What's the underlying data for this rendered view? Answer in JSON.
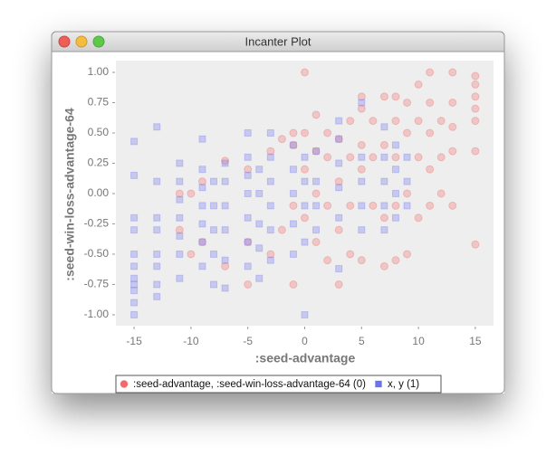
{
  "window_title": "Incanter Plot",
  "chart_data": {
    "type": "scatter",
    "xlabel": ":seed-advantage",
    "ylabel": ":seed-win-loss-advantage-64",
    "xlim": [
      -16.6,
      16.6
    ],
    "ylim": [
      -1.09,
      1.097
    ],
    "xticks": [
      -15,
      -10,
      -5,
      0,
      5,
      10,
      15
    ],
    "yticks": [
      {
        "value": -1,
        "label": "-1.00"
      },
      {
        "value": -0.75,
        "label": "-0.75"
      },
      {
        "value": -0.5,
        "label": "-0.50"
      },
      {
        "value": -0.25,
        "label": "-0.25"
      },
      {
        "value": 0,
        "label": "0.00"
      },
      {
        "value": 0.25,
        "label": "0.25"
      },
      {
        "value": 0.5,
        "label": "0.50"
      },
      {
        "value": 0.75,
        "label": "0.75"
      },
      {
        "value": 1,
        "label": "1.00"
      }
    ],
    "grid": false,
    "legend": "bottom",
    "series": [
      {
        "name": ":seed-advantage, :seed-win-loss-advantage-64 (0)",
        "color": "#f26a6a",
        "marker": "circle",
        "x": [
          -11,
          -11,
          -10,
          -10,
          -9,
          -9,
          -7,
          -7,
          -5,
          -5,
          -5,
          -3,
          -3,
          -2,
          -2,
          -1,
          -1,
          -1,
          -1,
          0,
          0,
          0,
          0,
          1,
          1,
          1,
          1,
          2,
          2,
          2,
          2,
          3,
          3,
          3,
          3,
          4,
          4,
          4,
          4,
          5,
          5,
          5,
          5,
          5,
          6,
          6,
          6,
          7,
          7,
          7,
          7,
          8,
          8,
          8,
          8,
          8,
          9,
          9,
          9,
          9,
          10,
          10,
          10,
          10,
          11,
          11,
          11,
          11,
          11,
          12,
          12,
          12,
          13,
          13,
          13,
          13,
          13,
          15,
          15,
          15,
          15,
          15,
          15,
          15
        ],
        "values": [
          0.0,
          -0.3,
          -0.5,
          0.0,
          -0.4,
          0.1,
          -0.6,
          0.27,
          -0.75,
          -0.4,
          0.2,
          -0.5,
          0.35,
          -0.3,
          0.45,
          -0.75,
          -0.1,
          0.4,
          0.5,
          1.0,
          -0.2,
          0.2,
          0.5,
          -0.4,
          0.0,
          0.35,
          0.65,
          -0.55,
          -0.1,
          0.3,
          0.5,
          -0.75,
          -0.3,
          0.1,
          0.45,
          -0.5,
          -0.1,
          0.3,
          0.6,
          -0.55,
          0.2,
          0.4,
          0.8,
          0.7,
          -0.1,
          0.3,
          0.6,
          -0.6,
          -0.2,
          0.4,
          0.8,
          -0.55,
          -0.1,
          0.3,
          0.6,
          0.8,
          -0.5,
          0.0,
          0.5,
          0.75,
          -0.2,
          0.3,
          0.6,
          0.9,
          -0.1,
          0.2,
          0.5,
          0.75,
          1.0,
          0.0,
          0.3,
          0.6,
          -0.1,
          0.35,
          0.55,
          0.75,
          1.0,
          -0.42,
          0.35,
          0.6,
          0.7,
          0.8,
          0.9,
          0.97
        ]
      },
      {
        "name": "x, y (1)",
        "color": "#6b72ee",
        "marker": "square",
        "x": [
          -15,
          -15,
          -15,
          -15,
          -15,
          -15,
          -15,
          -15,
          -15,
          -15,
          -15,
          -13,
          -13,
          -13,
          -13,
          -13,
          -13,
          -13,
          -13,
          -11,
          -11,
          -11,
          -11,
          -11,
          -11,
          -11,
          -9,
          -9,
          -9,
          -9,
          -9,
          -9,
          -9,
          -8,
          -8,
          -8,
          -8,
          -8,
          -7,
          -7,
          -7,
          -7,
          -7,
          -7,
          -5,
          -5,
          -5,
          -5,
          -5,
          -5,
          -5,
          -4,
          -4,
          -4,
          -4,
          -4,
          -3,
          -3,
          -3,
          -3,
          -3,
          -3,
          -1,
          -1,
          -1,
          -1,
          -1,
          0,
          0,
          0,
          0,
          0,
          1,
          1,
          1,
          1,
          3,
          3,
          3,
          3,
          3,
          3,
          5,
          5,
          5,
          5,
          5,
          7,
          7,
          7,
          7,
          7,
          8,
          8,
          8,
          8,
          9,
          9,
          9
        ],
        "values": [
          -1.0,
          -0.9,
          -0.8,
          -0.75,
          -0.7,
          -0.6,
          -0.5,
          -0.3,
          -0.2,
          0.15,
          0.43,
          -0.85,
          -0.75,
          -0.6,
          -0.5,
          -0.3,
          -0.2,
          0.1,
          0.55,
          -0.7,
          -0.5,
          -0.35,
          -0.2,
          -0.05,
          0.1,
          0.25,
          -0.6,
          -0.4,
          -0.25,
          -0.1,
          0.05,
          0.2,
          0.45,
          -0.75,
          -0.5,
          -0.3,
          -0.1,
          0.1,
          -0.78,
          -0.55,
          -0.3,
          -0.1,
          0.1,
          0.25,
          -0.6,
          -0.4,
          -0.2,
          0,
          0.15,
          0.3,
          0.5,
          -0.7,
          -0.45,
          -0.25,
          0,
          0.2,
          -0.55,
          -0.3,
          -0.1,
          0.1,
          0.3,
          0.5,
          -0.5,
          -0.25,
          0,
          0.2,
          0.4,
          -1.0,
          -0.4,
          -0.1,
          0.1,
          0.3,
          -0.3,
          -0.1,
          0.1,
          0.35,
          -0.62,
          -0.2,
          0.05,
          0.25,
          0.45,
          0.6,
          -0.3,
          -0.1,
          0.1,
          0.3,
          0.75,
          -0.3,
          -0.1,
          0.1,
          0.3,
          0.55,
          -0.2,
          0,
          0.2,
          0.4,
          -0.1,
          0.1,
          0.3
        ]
      }
    ]
  }
}
